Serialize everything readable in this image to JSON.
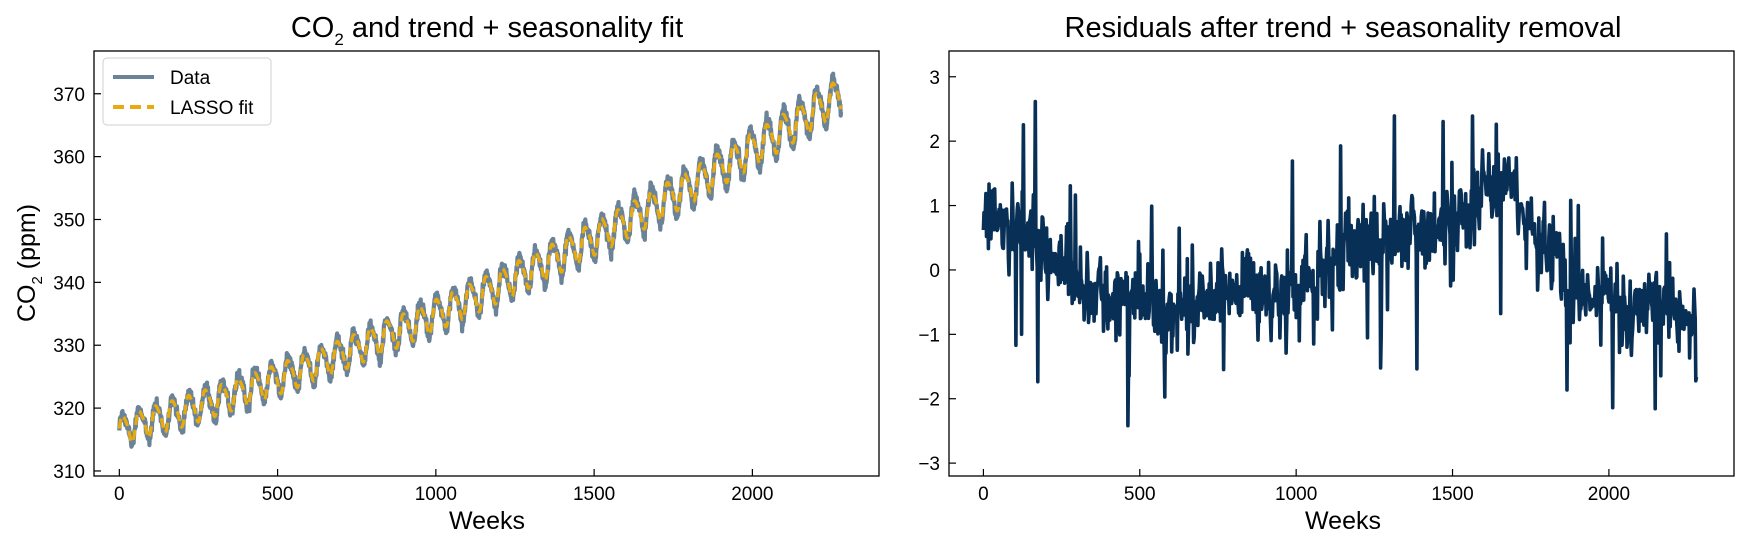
{
  "chart_data": [
    {
      "type": "line",
      "title_parts": [
        "CO",
        "2",
        " and trend + seasonality fit"
      ],
      "xlabel": "Weeks",
      "ylabel_parts": [
        "CO",
        "2",
        " (ppm)"
      ],
      "xlim": [
        -80,
        2400
      ],
      "ylim": [
        309.2,
        376.8
      ],
      "xticks": [
        0,
        500,
        1000,
        1500,
        2000
      ],
      "yticks": [
        310,
        320,
        330,
        340,
        350,
        360,
        370
      ],
      "legend": {
        "placement": "upper-left",
        "entries": [
          "Data",
          "LASSO fit"
        ]
      },
      "grid": false,
      "series": [
        {
          "name": "Data",
          "color": "#6a8399",
          "style": "solid",
          "model": {
            "weeks": [
              0,
              2280
            ],
            "trend_start_ppm": 316.5,
            "trend_end_ppm": 370.0,
            "seasonal_amplitude_ppm": [
              2.6,
              3.6
            ],
            "period_weeks": 52.18,
            "noise_ppm": 0.5
          }
        },
        {
          "name": "LASSO fit",
          "color": "#e8aa0c",
          "style": "dashed",
          "model": {
            "weeks": [
              0,
              2280
            ],
            "trend_start_ppm": 316.5,
            "trend_end_ppm": 370.0,
            "seasonal_amplitude_ppm": [
              2.4,
              2.9
            ],
            "period_weeks": 52.18
          }
        }
      ]
    },
    {
      "type": "line",
      "title": "Residuals after trend + seasonality removal",
      "xlabel": "Weeks",
      "xlim": [
        -110,
        2400
      ],
      "ylim": [
        -3.2,
        3.4
      ],
      "xticks": [
        0,
        500,
        1000,
        1500,
        2000
      ],
      "yticks": [
        -3,
        -2,
        -1,
        0,
        1,
        2,
        3
      ],
      "grid": false,
      "series": [
        {
          "color": "#082f55",
          "style": "solid",
          "x_range": [
            0,
            2280
          ],
          "envelope_weeks": [
            0,
            100,
            200,
            300,
            400,
            500,
            600,
            700,
            800,
            900,
            1000,
            1100,
            1200,
            1300,
            1400,
            1500,
            1600,
            1700,
            1800,
            1900,
            2000,
            2100,
            2200,
            2280
          ],
          "envelope_values": [
            1.0,
            0.7,
            0.4,
            -0.2,
            -0.5,
            -0.4,
            -0.7,
            -0.5,
            -0.3,
            -0.5,
            -0.3,
            0.1,
            0.3,
            0.5,
            0.6,
            0.7,
            1.3,
            1.2,
            0.3,
            -0.4,
            -0.5,
            -0.6,
            -0.6,
            -1.1
          ],
          "noise_std": 0.55,
          "range": [
            -2.8,
            3.1
          ]
        }
      ]
    }
  ]
}
